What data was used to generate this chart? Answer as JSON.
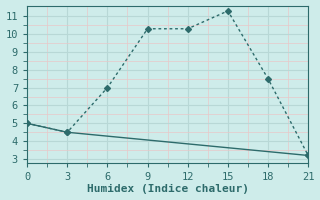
{
  "xlabel": "Humidex (Indice chaleur)",
  "background_color": "#ceecea",
  "line_color": "#2d6b6b",
  "grid_color_major": "#b8d8d6",
  "grid_color_minor": "#e8c8c8",
  "line1_x": [
    0,
    3,
    6,
    9,
    12,
    15,
    18,
    21
  ],
  "line1_y": [
    5.0,
    4.5,
    7.0,
    10.3,
    10.3,
    11.3,
    7.5,
    3.2
  ],
  "line2_x": [
    0,
    3,
    21
  ],
  "line2_y": [
    5.0,
    4.5,
    3.2
  ],
  "xlim": [
    0,
    21
  ],
  "ylim": [
    2.8,
    11.6
  ],
  "xticks": [
    0,
    3,
    6,
    9,
    12,
    15,
    18,
    21
  ],
  "yticks": [
    3,
    4,
    5,
    6,
    7,
    8,
    9,
    10,
    11
  ],
  "marker": "D",
  "marker_size": 3,
  "line_width": 1.0,
  "tick_fontsize": 7.5,
  "xlabel_fontsize": 8
}
